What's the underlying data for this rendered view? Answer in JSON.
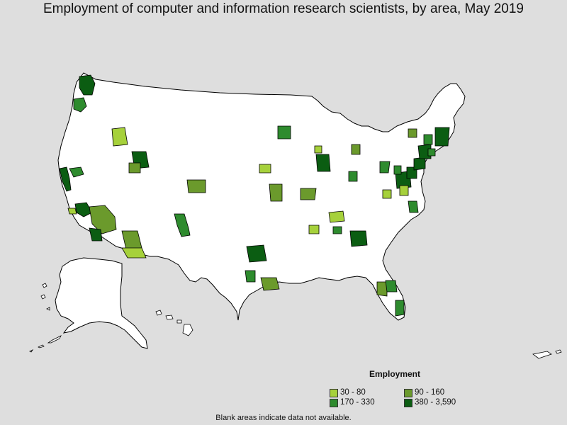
{
  "title": "Employment of computer and information research scientists, by area, May 2019",
  "legend": {
    "title": "Employment",
    "items": [
      {
        "label": "30 - 80",
        "color": "#a6d13b"
      },
      {
        "label": "90 - 160",
        "color": "#6b9a2c"
      },
      {
        "label": "170 - 330",
        "color": "#2e8b2e"
      },
      {
        "label": "380 - 3,590",
        "color": "#0b5d12"
      }
    ]
  },
  "note": "Blank areas indicate data not available.",
  "colors": {
    "background": "#dedede",
    "land": "#ffffff",
    "border": "#000000"
  },
  "regions": [
    {
      "name": "Seattle area",
      "class": 3
    },
    {
      "name": "Portland area",
      "class": 2
    },
    {
      "name": "Boise area",
      "class": 0
    },
    {
      "name": "San Francisco area",
      "class": 3
    },
    {
      "name": "Sacramento area",
      "class": 2
    },
    {
      "name": "Los Angeles area",
      "class": 3
    },
    {
      "name": "Riverside area",
      "class": 1
    },
    {
      "name": "San Diego area",
      "class": 3
    },
    {
      "name": "Santa Barbara area",
      "class": 0
    },
    {
      "name": "Phoenix area",
      "class": 1
    },
    {
      "name": "Tucson area",
      "class": 0
    },
    {
      "name": "Salt Lake City area",
      "class": 3
    },
    {
      "name": "Provo area",
      "class": 1
    },
    {
      "name": "Denver area",
      "class": 1
    },
    {
      "name": "Albuquerque area",
      "class": 2
    },
    {
      "name": "Dallas area",
      "class": 3
    },
    {
      "name": "Austin area",
      "class": 2
    },
    {
      "name": "Houston area",
      "class": 1
    },
    {
      "name": "Kansas City area",
      "class": 1
    },
    {
      "name": "St. Louis area",
      "class": 1
    },
    {
      "name": "Des Moines area",
      "class": 0
    },
    {
      "name": "Minneapolis area",
      "class": 2
    },
    {
      "name": "Chicago area",
      "class": 3
    },
    {
      "name": "Madison area",
      "class": 0
    },
    {
      "name": "Detroit area",
      "class": 1
    },
    {
      "name": "Columbus area",
      "class": 2
    },
    {
      "name": "Indianapolis area",
      "class": 2
    },
    {
      "name": "Nashville area",
      "class": 0
    },
    {
      "name": "Huntsville area",
      "class": 0
    },
    {
      "name": "Atlanta area",
      "class": 3
    },
    {
      "name": "Birmingham area",
      "class": 2
    },
    {
      "name": "Tampa area",
      "class": 1
    },
    {
      "name": "Orlando area",
      "class": 2
    },
    {
      "name": "Miami area",
      "class": 2
    },
    {
      "name": "Raleigh area",
      "class": 0
    },
    {
      "name": "Virginia Beach area",
      "class": 2
    },
    {
      "name": "Washington DC area",
      "class": 3
    },
    {
      "name": "Baltimore area",
      "class": 3
    },
    {
      "name": "Philadelphia area",
      "class": 3
    },
    {
      "name": "New York area",
      "class": 3
    },
    {
      "name": "Boston area",
      "class": 3
    },
    {
      "name": "Pittsburgh area",
      "class": 2
    },
    {
      "name": "Rochester area",
      "class": 1
    },
    {
      "name": "Charlottesville area",
      "class": 0
    },
    {
      "name": "Albany area",
      "class": 2
    },
    {
      "name": "Hartford area",
      "class": 2
    }
  ]
}
